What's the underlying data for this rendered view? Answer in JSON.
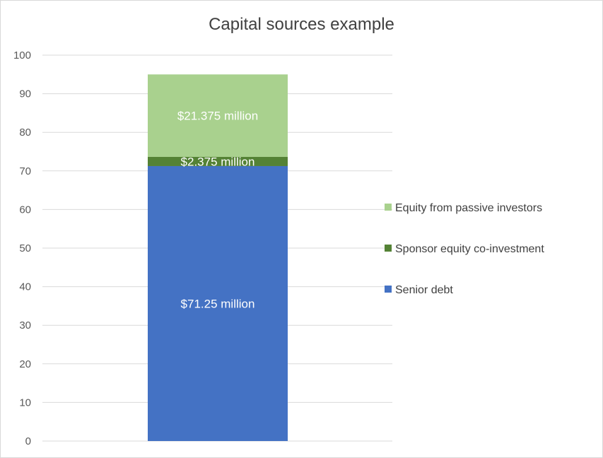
{
  "chart_data": {
    "type": "bar",
    "stacked": true,
    "title": "Capital sources example",
    "xlabel": "",
    "ylabel": "",
    "ylim": [
      0,
      100
    ],
    "yticks": [
      0,
      10,
      20,
      30,
      40,
      50,
      60,
      70,
      80,
      90,
      100
    ],
    "categories": [
      ""
    ],
    "grid": true,
    "legend_position": "right",
    "series": [
      {
        "name": "Senior debt",
        "values": [
          71.25
        ],
        "label": "$71.25 million",
        "color": "#4472c4"
      },
      {
        "name": "Sponsor equity co-investment",
        "values": [
          2.375
        ],
        "label": "$2.375 million",
        "color": "#548235"
      },
      {
        "name": "Equity from passive investors",
        "values": [
          21.375
        ],
        "label": "$21.375 million",
        "color": "#a9d18e"
      }
    ]
  }
}
